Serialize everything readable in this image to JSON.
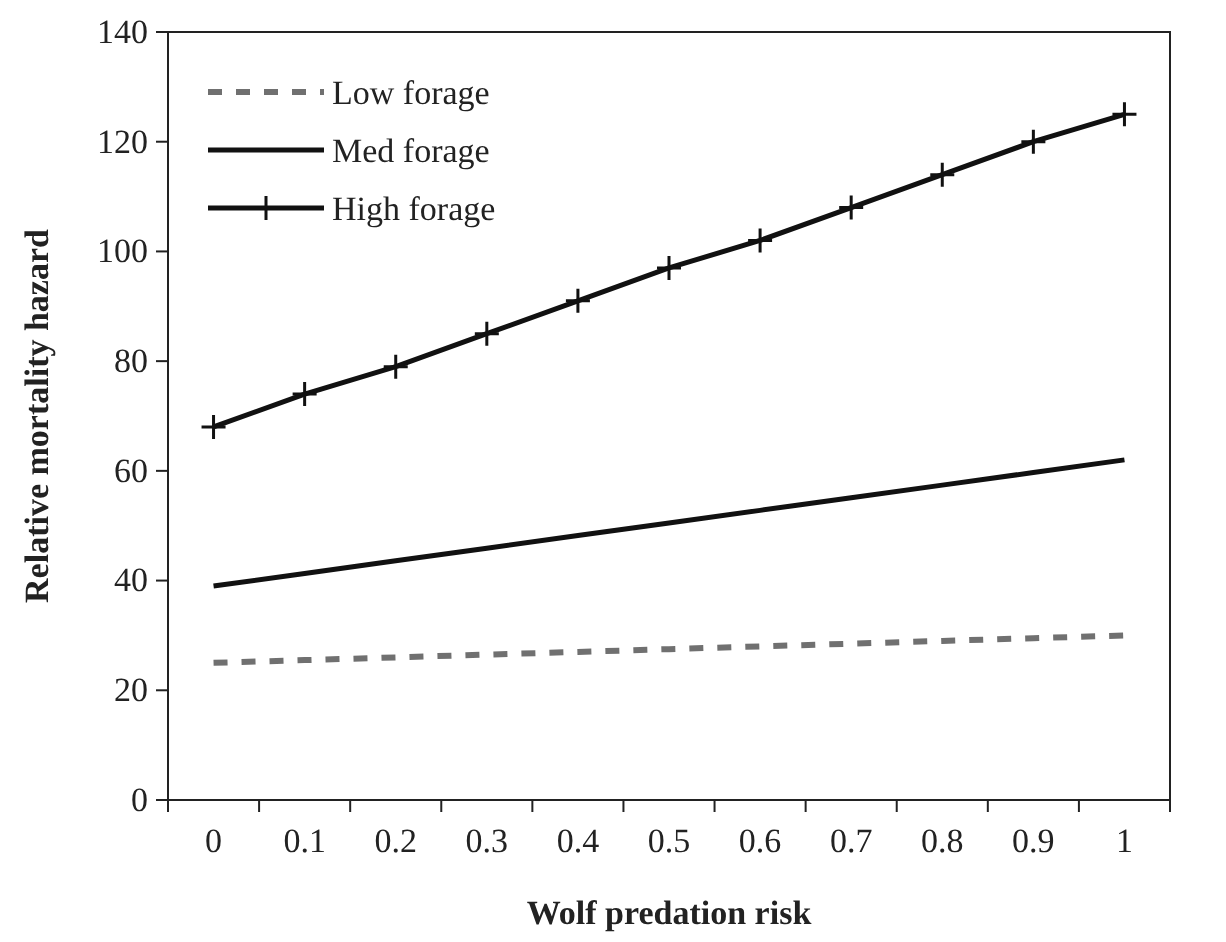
{
  "chart_data": {
    "type": "line",
    "xlabel": "Wolf predation risk",
    "ylabel": "Relative mortality hazard",
    "categories": [
      "0",
      "0.1",
      "0.2",
      "0.3",
      "0.4",
      "0.5",
      "0.6",
      "0.7",
      "0.8",
      "0.9",
      "1"
    ],
    "series": [
      {
        "name": "Low forage",
        "color": "#707070",
        "line_style": "dashed",
        "marker": "none",
        "values": [
          25,
          25.5,
          26,
          26.5,
          27,
          27.5,
          28,
          28.5,
          29,
          29.5,
          30
        ]
      },
      {
        "name": "Med forage",
        "color": "#111111",
        "line_style": "solid",
        "marker": "none",
        "values": [
          39,
          41.3,
          43.6,
          45.9,
          48.2,
          50.5,
          52.8,
          55.1,
          57.4,
          59.7,
          62
        ]
      },
      {
        "name": "High forage",
        "color": "#111111",
        "line_style": "solid",
        "marker": "cross",
        "values": [
          68,
          74,
          79,
          85,
          91,
          97,
          102,
          108,
          114,
          120,
          125
        ]
      }
    ],
    "ylim": [
      0,
      140
    ],
    "yticks": [
      0,
      20,
      40,
      60,
      80,
      100,
      120,
      140
    ],
    "grid": false,
    "legend": "top left"
  }
}
